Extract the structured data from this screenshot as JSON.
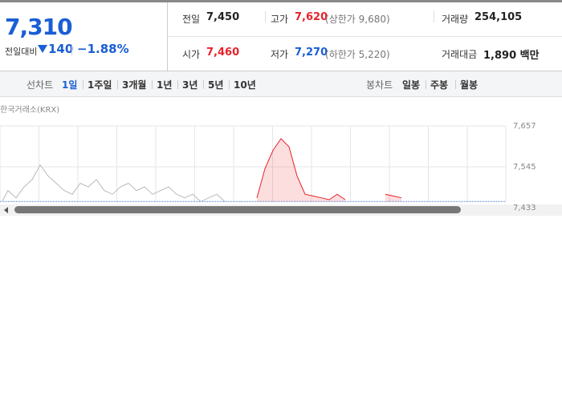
{
  "header": {
    "price": "7,310",
    "change_label": "전일대비",
    "change": "140",
    "change_rate": "−1.88%"
  },
  "summary": {
    "rows": [
      [
        {
          "label": "전일",
          "value": "7,450"
        },
        {
          "label": "고가",
          "value": "7,620",
          "limit_label": "상한가",
          "limit": "9,680"
        },
        {
          "label": "거래량",
          "value": "254,105"
        }
      ],
      [
        {
          "label": "시가",
          "value": "7,460"
        },
        {
          "label": "저가",
          "value": "7,270",
          "limit_label": "하한가",
          "limit": "5,220"
        },
        {
          "label": "거래대금",
          "value": "1,890 백만"
        }
      ]
    ]
  },
  "toolbar": {
    "line_label": "선차트",
    "periods": [
      "1일",
      "1주일",
      "3개월",
      "1년",
      "3년",
      "5년",
      "10년"
    ],
    "active": 0,
    "candle_label": "봉차트",
    "candles": [
      "일봉",
      "주봉",
      "월봉"
    ]
  },
  "source": "한국거래소(KRX)",
  "chart_data": {
    "type": "line",
    "series": [
      {
        "color": "#bbbbbb",
        "values": [
          7440,
          7480,
          7460,
          7490,
          7510,
          7550,
          7520,
          7500,
          7480,
          7470,
          7500,
          7490,
          7510,
          7480,
          7470,
          7490,
          7500,
          7480,
          7490,
          7470,
          7480,
          7490,
          7470,
          7460,
          7470,
          7450,
          7460,
          7470,
          7450,
          7440,
          7450,
          null,
          null,
          null,
          null,
          null,
          null,
          null,
          null,
          null,
          null,
          null,
          null,
          null,
          null,
          null,
          null,
          null,
          null,
          null,
          null,
          null,
          null,
          null,
          null,
          null,
          null,
          null,
          null,
          null,
          null,
          null,
          null,
          null
        ]
      },
      {
        "color": "#e8222a",
        "values": [
          null,
          null,
          null,
          null,
          null,
          null,
          null,
          null,
          null,
          null,
          null,
          null,
          null,
          null,
          null,
          null,
          null,
          null,
          null,
          null,
          null,
          null,
          null,
          null,
          null,
          null,
          null,
          null,
          null,
          null,
          null,
          null,
          7460,
          7540,
          7590,
          7622,
          7600,
          7520,
          7470,
          7465,
          7460,
          7455,
          7470,
          7455,
          null,
          null,
          null,
          null,
          7470,
          7465,
          7460,
          null,
          null,
          null,
          null,
          null,
          null,
          null,
          null,
          null,
          null,
          null,
          null,
          null
        ]
      }
    ],
    "baseline": 7450,
    "ylim": [
      7433,
      7657
    ],
    "yticks": [
      {
        "value": 7433,
        "label": "7,433"
      },
      {
        "value": 7545,
        "label": "7,545"
      },
      {
        "value": 7657,
        "label": "7,657"
      }
    ]
  }
}
